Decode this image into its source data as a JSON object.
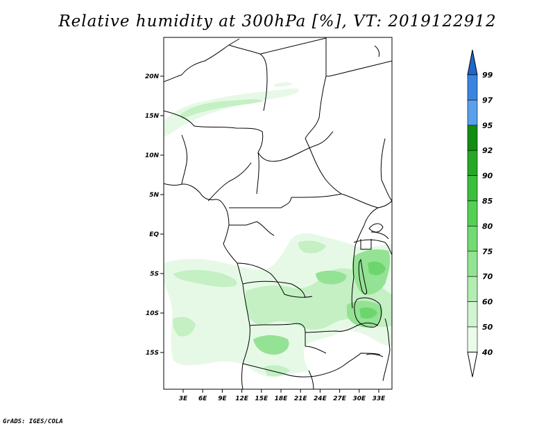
{
  "title": "Relative humidity at 300hPa [%], VT: 2019122912",
  "credit": "GrADS: IGES/COLA",
  "map": {
    "lat_labels": [
      "20N",
      "15N",
      "10N",
      "5N",
      "EQ",
      "5S",
      "10S",
      "15S"
    ],
    "lon_labels": [
      "3E",
      "6E",
      "9E",
      "12E",
      "15E",
      "18E",
      "21E",
      "24E",
      "27E",
      "30E",
      "33E"
    ]
  },
  "colorbar": {
    "levels": [
      "99",
      "97",
      "95",
      "92",
      "90",
      "85",
      "80",
      "75",
      "70",
      "60",
      "50",
      "40"
    ],
    "colors": [
      "#1f66cc",
      "#3a84e0",
      "#5aa0ea",
      "#138c13",
      "#26a826",
      "#3cbf3c",
      "#55d055",
      "#72da72",
      "#92e492",
      "#b2edb2",
      "#d0f4d0",
      "#eafbea"
    ]
  },
  "colors": {
    "land_border": "#000000",
    "rh_light": "#e6f9e6",
    "rh_mid": "#c4f0c4",
    "rh_high": "#94e294",
    "rh_top": "#6cd66c"
  }
}
